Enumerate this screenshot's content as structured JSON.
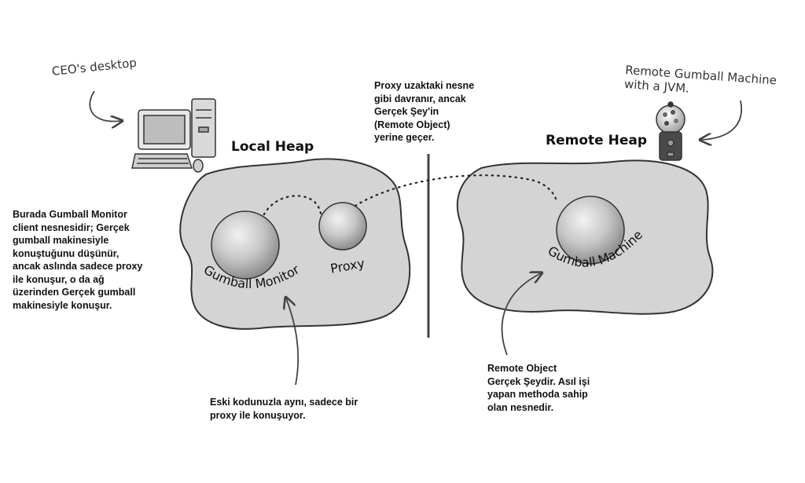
{
  "labels": {
    "ceo_desktop": "CEO's desktop",
    "remote_machine_note": "Remote Gumball Machine\nwith a JVM.",
    "local_heap": "Local Heap",
    "remote_heap": "Remote Heap",
    "gumball_monitor": "Gumball Monitor",
    "proxy": "Proxy",
    "gumball_machine": "Gumball Machine"
  },
  "notes": {
    "proxy_note": "Proxy uzaktaki nesne\ngibi davranır, ancak\nGerçek Şey'in\n(Remote Object)\nyerine geçer.",
    "monitor_note": "Burada Gumball Monitor\nclient nesnesidir; Gerçek\ngumball makinesiyle\nkonuştuğunu düşünür,\nancak aslında sadece proxy\nile konuşur, o da ağ\nüzerinden Gerçek gumball\nmakinesiyle konuşur.",
    "old_code_note": "Eski kodunuzla aynı, sadece bir\nproxy ile konuşuyor.",
    "remote_object_note": "Remote Object\nGerçek Şeydir. Asıl işi\nyapan methoda sahip\nolan nesnedir."
  },
  "colors": {
    "heap_fill": "#d4d4d4",
    "outline": "#333333",
    "sphere_mid": "#bdbdbd"
  },
  "icons": {
    "computer": "desktop-computer-icon",
    "gumball": "gumball-machine-icon"
  }
}
